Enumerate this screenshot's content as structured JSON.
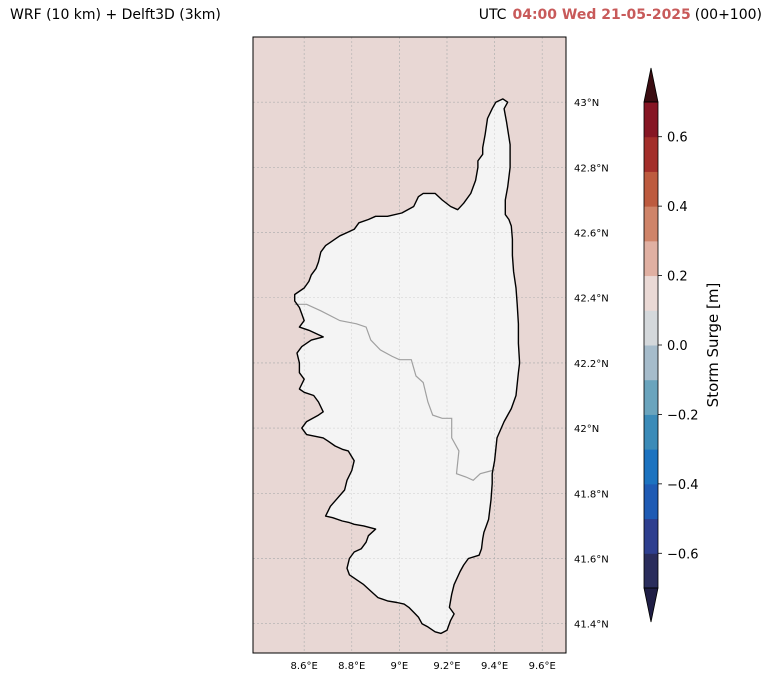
{
  "header": {
    "left_title": "WRF (10 km) + Delft3D (3km)",
    "utc_label": "UTC",
    "time": "04:00 Wed 21-05-2025",
    "run": "(00+100)"
  },
  "colors": {
    "sea_fill": "#e8d7d4",
    "land_fill": "#f4f4f4",
    "coast": "#000000",
    "border": "#a0a0a0",
    "grid": "#b0b0b0",
    "highlight": "#c85a5a"
  },
  "chart_data": {
    "type": "heatmap",
    "title": "WRF (10 km) + Delft3D (3km)",
    "xlim": [
      8.385,
      9.7
    ],
    "ylim": [
      41.31,
      43.2
    ],
    "x_ticks": [
      {
        "value": 8.6,
        "label": "8.6°E"
      },
      {
        "value": 8.8,
        "label": "8.8°E"
      },
      {
        "value": 9.0,
        "label": "9°E"
      },
      {
        "value": 9.2,
        "label": "9.2°E"
      },
      {
        "value": 9.4,
        "label": "9.4°E"
      },
      {
        "value": 9.6,
        "label": "9.6°E"
      }
    ],
    "y_ticks": [
      {
        "value": 41.4,
        "label": "41.4°N"
      },
      {
        "value": 41.6,
        "label": "41.6°N"
      },
      {
        "value": 41.8,
        "label": "41.8°N"
      },
      {
        "value": 42.0,
        "label": "42°N"
      },
      {
        "value": 42.2,
        "label": "42.2°N"
      },
      {
        "value": 42.4,
        "label": "42.4°N"
      },
      {
        "value": 42.6,
        "label": "42.6°N"
      },
      {
        "value": 42.8,
        "label": "42.8°N"
      },
      {
        "value": 43.0,
        "label": "43°N"
      }
    ],
    "field": {
      "name": "Storm Surge",
      "sea_value": 0.05
    },
    "grid": true,
    "coastline": [
      [
        9.405,
        43.0
      ],
      [
        9.435,
        43.01
      ],
      [
        9.455,
        43.0
      ],
      [
        9.44,
        42.98
      ],
      [
        9.45,
        42.94
      ],
      [
        9.465,
        42.87
      ],
      [
        9.465,
        42.8
      ],
      [
        9.455,
        42.74
      ],
      [
        9.445,
        42.7
      ],
      [
        9.445,
        42.655
      ],
      [
        9.46,
        42.64
      ],
      [
        9.47,
        42.62
      ],
      [
        9.475,
        42.58
      ],
      [
        9.475,
        42.53
      ],
      [
        9.48,
        42.48
      ],
      [
        9.49,
        42.43
      ],
      [
        9.495,
        42.38
      ],
      [
        9.5,
        42.32
      ],
      [
        9.5,
        42.26
      ],
      [
        9.505,
        42.2
      ],
      [
        9.5,
        42.17
      ],
      [
        9.49,
        42.1
      ],
      [
        9.47,
        42.06
      ],
      [
        9.44,
        42.02
      ],
      [
        9.41,
        41.97
      ],
      [
        9.4,
        41.9
      ],
      [
        9.39,
        41.86
      ],
      [
        9.39,
        41.83
      ],
      [
        9.385,
        41.78
      ],
      [
        9.38,
        41.75
      ],
      [
        9.375,
        41.72
      ],
      [
        9.365,
        41.7
      ],
      [
        9.355,
        41.68
      ],
      [
        9.35,
        41.66
      ],
      [
        9.345,
        41.63
      ],
      [
        9.335,
        41.61
      ],
      [
        9.29,
        41.6
      ],
      [
        9.27,
        41.58
      ],
      [
        9.255,
        41.56
      ],
      [
        9.23,
        41.52
      ],
      [
        9.22,
        41.49
      ],
      [
        9.21,
        41.45
      ],
      [
        9.23,
        41.43
      ],
      [
        9.215,
        41.41
      ],
      [
        9.2,
        41.38
      ],
      [
        9.175,
        41.37
      ],
      [
        9.15,
        41.375
      ],
      [
        9.12,
        41.39
      ],
      [
        9.095,
        41.4
      ],
      [
        9.08,
        41.42
      ],
      [
        9.06,
        41.435
      ],
      [
        9.04,
        41.45
      ],
      [
        9.02,
        41.46
      ],
      [
        8.99,
        41.465
      ],
      [
        8.95,
        41.47
      ],
      [
        8.91,
        41.48
      ],
      [
        8.88,
        41.5
      ],
      [
        8.85,
        41.52
      ],
      [
        8.82,
        41.535
      ],
      [
        8.79,
        41.55
      ],
      [
        8.78,
        41.57
      ],
      [
        8.79,
        41.6
      ],
      [
        8.81,
        41.62
      ],
      [
        8.84,
        41.63
      ],
      [
        8.86,
        41.65
      ],
      [
        8.87,
        41.67
      ],
      [
        8.9,
        41.69
      ],
      [
        8.85,
        41.7
      ],
      [
        8.81,
        41.705
      ],
      [
        8.79,
        41.71
      ],
      [
        8.76,
        41.715
      ],
      [
        8.72,
        41.725
      ],
      [
        8.69,
        41.73
      ],
      [
        8.71,
        41.76
      ],
      [
        8.74,
        41.785
      ],
      [
        8.77,
        41.81
      ],
      [
        8.78,
        41.84
      ],
      [
        8.8,
        41.87
      ],
      [
        8.81,
        41.9
      ],
      [
        8.785,
        41.93
      ],
      [
        8.76,
        41.935
      ],
      [
        8.73,
        41.945
      ],
      [
        8.7,
        41.96
      ],
      [
        8.68,
        41.97
      ],
      [
        8.61,
        41.98
      ],
      [
        8.59,
        42.0
      ],
      [
        8.61,
        42.02
      ],
      [
        8.66,
        42.04
      ],
      [
        8.68,
        42.05
      ],
      [
        8.66,
        42.08
      ],
      [
        8.64,
        42.1
      ],
      [
        8.6,
        42.11
      ],
      [
        8.58,
        42.12
      ],
      [
        8.6,
        42.15
      ],
      [
        8.58,
        42.17
      ],
      [
        8.58,
        42.2
      ],
      [
        8.57,
        42.23
      ],
      [
        8.59,
        42.25
      ],
      [
        8.63,
        42.27
      ],
      [
        8.68,
        42.28
      ],
      [
        8.62,
        42.3
      ],
      [
        8.58,
        42.31
      ],
      [
        8.6,
        42.33
      ],
      [
        8.59,
        42.35
      ],
      [
        8.58,
        42.37
      ],
      [
        8.56,
        42.39
      ],
      [
        8.56,
        42.41
      ],
      [
        8.6,
        42.43
      ],
      [
        8.62,
        42.45
      ],
      [
        8.63,
        42.47
      ],
      [
        8.65,
        42.49
      ],
      [
        8.66,
        42.51
      ],
      [
        8.67,
        42.54
      ],
      [
        8.69,
        42.56
      ],
      [
        8.71,
        42.57
      ],
      [
        8.73,
        42.58
      ],
      [
        8.75,
        42.59
      ],
      [
        8.78,
        42.6
      ],
      [
        8.81,
        42.61
      ],
      [
        8.83,
        42.63
      ],
      [
        8.87,
        42.64
      ],
      [
        8.9,
        42.65
      ],
      [
        8.95,
        42.65
      ],
      [
        9.01,
        42.66
      ],
      [
        9.06,
        42.68
      ],
      [
        9.08,
        42.71
      ],
      [
        9.1,
        42.72
      ],
      [
        9.15,
        42.72
      ],
      [
        9.18,
        42.7
      ],
      [
        9.215,
        42.68
      ],
      [
        9.245,
        42.67
      ],
      [
        9.27,
        42.69
      ],
      [
        9.3,
        42.72
      ],
      [
        9.32,
        42.76
      ],
      [
        9.33,
        42.8
      ],
      [
        9.33,
        42.82
      ],
      [
        9.35,
        42.84
      ],
      [
        9.35,
        42.86
      ],
      [
        9.36,
        42.9
      ],
      [
        9.37,
        42.95
      ],
      [
        9.39,
        42.98
      ],
      [
        9.405,
        43.0
      ]
    ],
    "borders": [
      [
        [
          8.56,
          42.38
        ],
        [
          8.61,
          42.38
        ],
        [
          8.67,
          42.36
        ],
        [
          8.75,
          42.33
        ],
        [
          8.82,
          42.32
        ],
        [
          8.86,
          42.31
        ],
        [
          8.88,
          42.27
        ],
        [
          8.92,
          42.24
        ],
        [
          8.97,
          42.22
        ],
        [
          9.0,
          42.21
        ],
        [
          9.05,
          42.21
        ],
        [
          9.07,
          42.16
        ],
        [
          9.1,
          42.14
        ],
        [
          9.12,
          42.08
        ],
        [
          9.14,
          42.04
        ],
        [
          9.18,
          42.03
        ],
        [
          9.22,
          42.03
        ],
        [
          9.22,
          41.97
        ],
        [
          9.25,
          41.93
        ],
        [
          9.24,
          41.86
        ],
        [
          9.28,
          41.85
        ],
        [
          9.31,
          41.84
        ],
        [
          9.34,
          41.86
        ],
        [
          9.39,
          41.87
        ]
      ]
    ],
    "colorbar": {
      "label": "Storm Surge [m]",
      "vmin": -0.7,
      "vmax": 0.7,
      "extend": "both",
      "levels": [
        -0.7,
        -0.6,
        -0.5,
        -0.4,
        -0.3,
        -0.2,
        -0.1,
        0.0,
        0.1,
        0.2,
        0.3,
        0.4,
        0.5,
        0.6,
        0.7
      ],
      "colors": [
        "#2a2d5c",
        "#2e3f8f",
        "#1f5bb4",
        "#1c73c0",
        "#3b8bb8",
        "#6aa4bd",
        "#a6bccb",
        "#d4d8db",
        "#ead9d5",
        "#e0b0a2",
        "#cf8469",
        "#bd5b3f",
        "#a32e2a",
        "#861624",
        "#641521",
        "#4a0e17"
      ],
      "under_color": "#1f1e45",
      "over_color": "#3b0d12",
      "ticks": [
        {
          "value": -0.6,
          "label": "−0.6"
        },
        {
          "value": -0.4,
          "label": "−0.4"
        },
        {
          "value": -0.2,
          "label": "−0.2"
        },
        {
          "value": 0.0,
          "label": "0.0"
        },
        {
          "value": 0.2,
          "label": "0.2"
        },
        {
          "value": 0.4,
          "label": "0.4"
        },
        {
          "value": 0.6,
          "label": "0.6"
        }
      ]
    }
  }
}
